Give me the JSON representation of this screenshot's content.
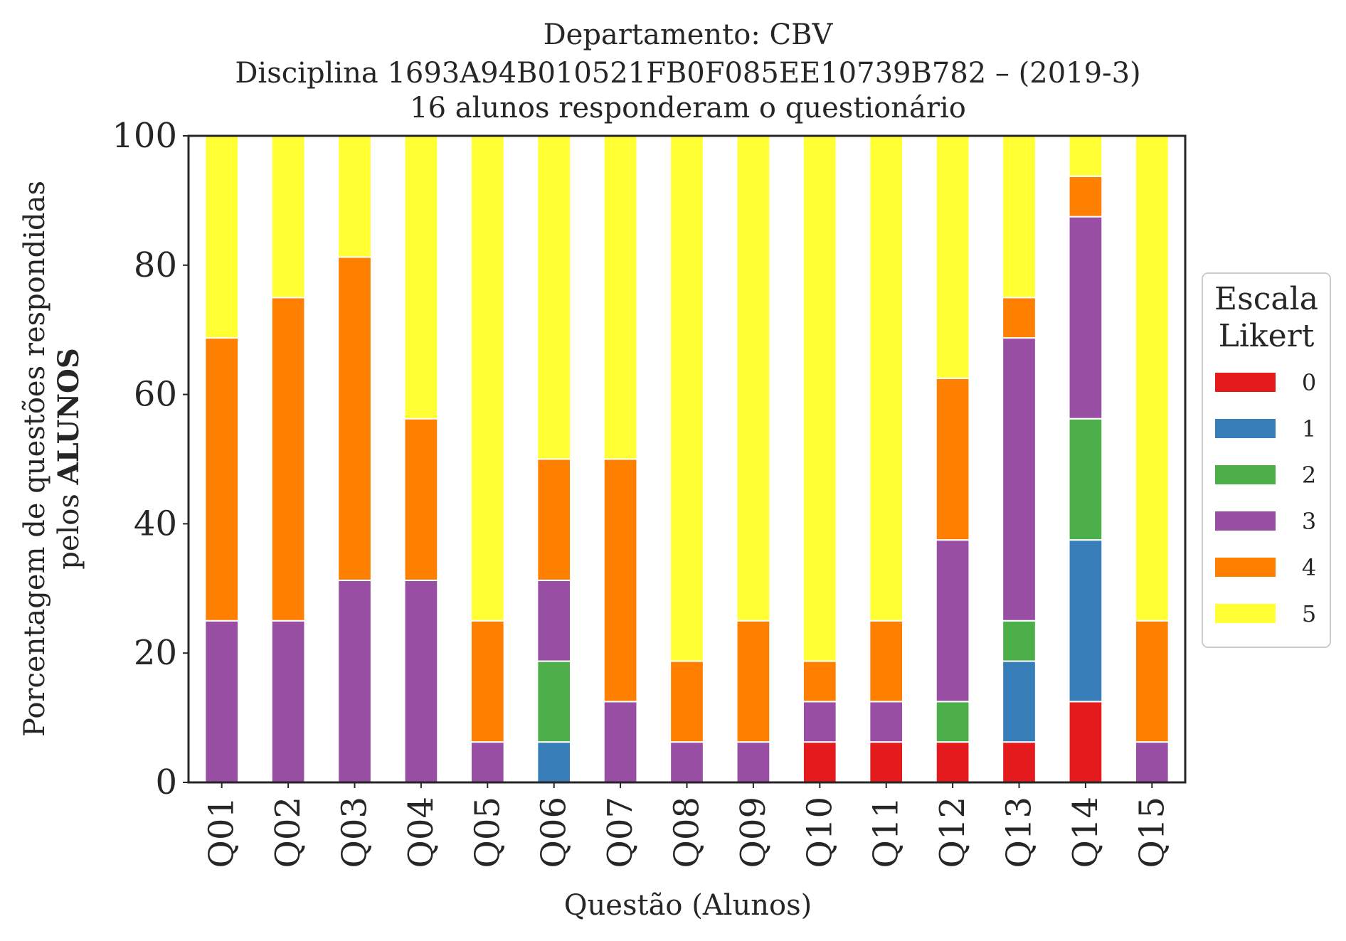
{
  "chart_data": {
    "type": "bar",
    "stacked": true,
    "title_lines": [
      "Departamento: CBV",
      "Disciplina 1693A94B010521FB0F085EE10739B782 – (2019-3)",
      "16 alunos responderam o questionário"
    ],
    "xlabel": "Questão (Alunos)",
    "ylabel_line1": "Porcentagem de questões respondidas",
    "ylabel_line2_prefix": "pelos ",
    "ylabel_line2_bold": "ALUNOS",
    "ylim": [
      0,
      100
    ],
    "yticks": [
      "0",
      "20",
      "40",
      "60",
      "80",
      "100"
    ],
    "grid": false,
    "legend_position": "right",
    "legend_title_lines": [
      "Escala",
      "Likert"
    ],
    "categories": [
      "Q01",
      "Q02",
      "Q03",
      "Q04",
      "Q05",
      "Q06",
      "Q07",
      "Q08",
      "Q09",
      "Q10",
      "Q11",
      "Q12",
      "Q13",
      "Q14",
      "Q15"
    ],
    "series": [
      {
        "name": "0",
        "color": "#e41a1c",
        "values": [
          0,
          0,
          0,
          0,
          0,
          0,
          0,
          0,
          0,
          6.25,
          6.25,
          6.25,
          6.25,
          12.5,
          0
        ]
      },
      {
        "name": "1",
        "color": "#377eb8",
        "values": [
          0,
          0,
          0,
          0,
          0,
          6.25,
          0,
          0,
          0,
          0,
          0,
          0,
          12.5,
          25,
          0
        ]
      },
      {
        "name": "2",
        "color": "#4daf4a",
        "values": [
          0,
          0,
          0,
          0,
          0,
          12.5,
          0,
          0,
          0,
          0,
          0,
          6.25,
          6.25,
          18.75,
          0
        ]
      },
      {
        "name": "3",
        "color": "#984ea3",
        "values": [
          25,
          25,
          31.25,
          31.25,
          6.25,
          12.5,
          12.5,
          6.25,
          6.25,
          6.25,
          6.25,
          25,
          43.75,
          31.25,
          6.25
        ]
      },
      {
        "name": "4",
        "color": "#ff7f00",
        "values": [
          43.75,
          50,
          50,
          25,
          18.75,
          18.75,
          37.5,
          12.5,
          18.75,
          6.25,
          12.5,
          25,
          6.25,
          6.25,
          18.75
        ]
      },
      {
        "name": "5",
        "color": "#ffff33",
        "values": [
          31.25,
          25,
          18.75,
          43.75,
          75,
          50,
          50,
          81.25,
          75,
          81.25,
          75,
          37.5,
          25,
          6.25,
          75
        ]
      }
    ]
  }
}
